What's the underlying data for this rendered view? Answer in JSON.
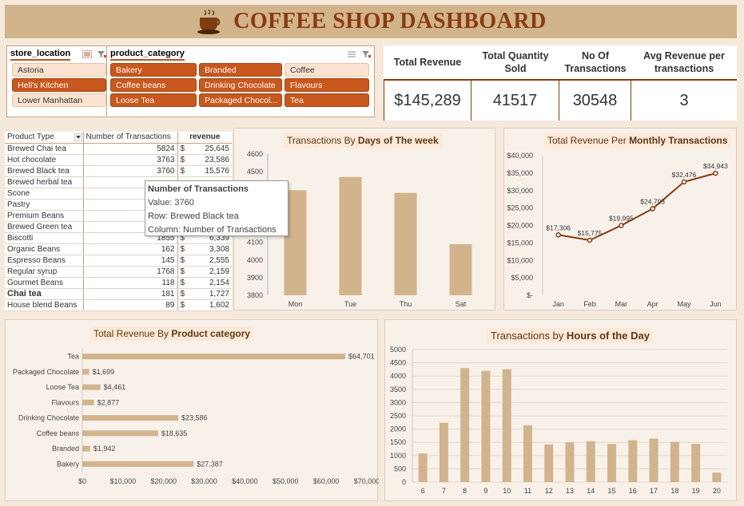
{
  "header": {
    "title": "COFFEE SHOP DASHBOARD"
  },
  "slicers": {
    "store_location": {
      "label": "store_location",
      "items": [
        "Astoria",
        "Hell's Kitchen",
        "Lower Manhattan"
      ],
      "selected": [
        false,
        true,
        false
      ]
    },
    "product_category": {
      "label": "product_category",
      "items": [
        "Bakery",
        "Branded",
        "Coffee",
        "Coffee beans",
        "Drinking Chocolate",
        "Flavours",
        "Loose Tea",
        "Packaged Chocol...",
        "Tea"
      ],
      "selected": [
        true,
        true,
        false,
        true,
        true,
        true,
        true,
        true,
        true
      ]
    }
  },
  "kpis": {
    "headers": [
      "Total Revenue",
      "Total Quantity Sold",
      "No Of Transactions",
      "Avg Revenue per transactions"
    ],
    "values": [
      "$145,289",
      "41517",
      "30548",
      "3"
    ]
  },
  "pivot": {
    "headers": [
      "Product Type",
      "Number of Transactions",
      "revenue"
    ],
    "currency_symbol": "$",
    "rows": [
      [
        "Brewed Chai tea",
        "5824",
        "25,645"
      ],
      [
        "Hot chocolate",
        "3763",
        "23,586"
      ],
      [
        "Brewed Black tea",
        "3760",
        "15,576"
      ],
      [
        "Brewed herbal tea",
        "",
        ""
      ],
      [
        "Scone",
        "",
        ""
      ],
      [
        "Pastry",
        "",
        ""
      ],
      [
        "Premium Beans",
        "",
        ""
      ],
      [
        "Brewed Green tea",
        "",
        ""
      ],
      [
        "Biscotti",
        "1855",
        "6,339"
      ],
      [
        "Organic Beans",
        "162",
        "3,308"
      ],
      [
        "Espresso Beans",
        "145",
        "2,555"
      ],
      [
        "Regular syrup",
        "1768",
        "2,159"
      ],
      [
        "Gourmet Beans",
        "118",
        "2,154"
      ],
      [
        "Chai tea",
        "181",
        "1,727"
      ],
      [
        "House blend Beans",
        "89",
        "1,602"
      ]
    ],
    "bold_row": 13
  },
  "tooltip": {
    "title": "Number of Transactions",
    "value": "Value: 3760",
    "row": "Row: Brewed Black tea",
    "column": "Column: Number of Transactions"
  },
  "colors": {
    "bar": "#d2b48c",
    "line": "#8b3a0f",
    "accent": "#c8581d"
  },
  "chart_data": [
    {
      "type": "bar",
      "title_prefix": "Transactions By ",
      "title_bold": "Days of The week",
      "categories": [
        "Mon",
        "Tue",
        "Thu",
        "Sat"
      ],
      "values": [
        4395,
        4470,
        4380,
        4090
      ],
      "ylim": [
        3800,
        4600
      ],
      "yticks": [
        3800,
        3900,
        4000,
        4100,
        4200,
        4300,
        4400,
        4500,
        4600
      ]
    },
    {
      "type": "line",
      "title_prefix": "Total Revenue Per ",
      "title_bold": "Monthly Transactions",
      "categories": [
        "Jan",
        "Feb",
        "Mar",
        "Apr",
        "May",
        "Jun"
      ],
      "values": [
        17306,
        15775,
        19995,
        24793,
        32476,
        34943
      ],
      "data_labels": [
        "$17,306",
        "$15,775",
        "$19,995",
        "$24,793",
        "$32,476",
        "$34,943"
      ],
      "ylim": [
        0,
        40000
      ],
      "ytick_labels": [
        "$-",
        "$5,000",
        "$10,000",
        "$15,000",
        "$20,000",
        "$25,000",
        "$30,000",
        "$35,000",
        "$40,000"
      ]
    },
    {
      "type": "bar",
      "orientation": "horizontal",
      "title_prefix": "Total Revenue By ",
      "title_bold": "Product category",
      "categories": [
        "Tea",
        "Packaged Chocolate",
        "Loose Tea",
        "Flavours",
        "Drinking Chocolate",
        "Coffee beans",
        "Branded",
        "Bakery"
      ],
      "values": [
        64701,
        1699,
        4461,
        2877,
        23586,
        18635,
        1942,
        27387
      ],
      "data_labels": [
        "$64,701",
        "$1,699",
        "$4,461",
        "$2,877",
        "$23,586",
        "$18,635",
        "$1,942",
        "$27,387"
      ],
      "xlim": [
        0,
        70000
      ],
      "xtick_labels": [
        "$0",
        "$10,000",
        "$20,000",
        "$30,000",
        "$40,000",
        "$50,000",
        "$60,000",
        "$70,000"
      ]
    },
    {
      "type": "bar",
      "title_prefix": "Transactions by ",
      "title_bold": "Hours of the Day",
      "categories": [
        "6",
        "7",
        "8",
        "9",
        "10",
        "11",
        "12",
        "13",
        "14",
        "15",
        "16",
        "17",
        "18",
        "19",
        "20"
      ],
      "values": [
        1080,
        2240,
        4300,
        4200,
        4260,
        2140,
        1420,
        1500,
        1540,
        1440,
        1580,
        1640,
        1520,
        1440,
        360
      ],
      "ylim": [
        0,
        5000
      ],
      "yticks": [
        0,
        500,
        1000,
        1500,
        2000,
        2500,
        3000,
        3500,
        4000,
        4500,
        5000
      ]
    }
  ]
}
